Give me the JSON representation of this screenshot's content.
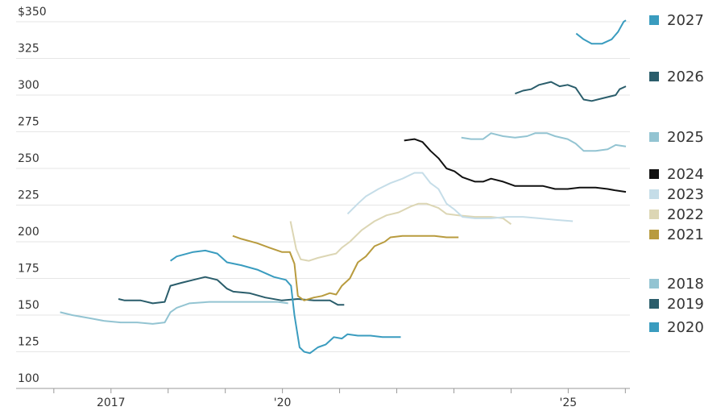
{
  "chart_data": {
    "type": "line",
    "xlim": [
      2015.34,
      2026.08
    ],
    "ylim": [
      100,
      350
    ],
    "yticks": [
      100,
      125,
      150,
      175,
      200,
      225,
      250,
      275,
      300,
      325,
      {
        "value": 350,
        "label": "$350"
      }
    ],
    "xticks": [
      {
        "value": 2017,
        "label": "2017"
      },
      {
        "value": 2020,
        "label": "'20"
      },
      {
        "value": 2025,
        "label": "'25"
      }
    ],
    "xminor_ticks": [
      2016,
      2018,
      2019,
      2021,
      2022,
      2023,
      2024,
      2026
    ],
    "grid": true,
    "series": [
      {
        "name": "2018",
        "color": "#93c4d2",
        "x": [
          2016.11,
          2016.32,
          2016.61,
          2016.89,
          2017.17,
          2017.46,
          2017.73,
          2017.94,
          2018.04,
          2018.15,
          2018.37,
          2018.72,
          2019.14,
          2019.56,
          2019.92,
          2020.1
        ],
        "values": [
          152,
          150,
          148,
          146,
          145,
          145,
          144,
          145,
          152,
          155,
          158,
          159,
          159,
          159,
          159,
          158
        ]
      },
      {
        "name": "2019",
        "color": "#2a5d6b",
        "x": [
          2017.13,
          2017.24,
          2017.52,
          2017.73,
          2017.94,
          2018.04,
          2018.23,
          2018.44,
          2018.65,
          2018.86,
          2019.03,
          2019.14,
          2019.42,
          2019.7,
          2019.99,
          2020.27,
          2020.55,
          2020.83,
          2020.97,
          2021.08
        ],
        "values": [
          161,
          160,
          160,
          158,
          159,
          170,
          172,
          174,
          176,
          174,
          168,
          166,
          165,
          162,
          160,
          161,
          160,
          160,
          157,
          157
        ]
      },
      {
        "name": "2020",
        "color": "#3a9cbf",
        "x": [
          2018.04,
          2018.15,
          2018.44,
          2018.65,
          2018.86,
          2019.03,
          2019.28,
          2019.56,
          2019.85,
          2020.06,
          2020.15,
          2020.21,
          2020.3,
          2020.38,
          2020.48,
          2020.62,
          2020.76,
          2020.9,
          2021.04,
          2021.14,
          2021.32,
          2021.54,
          2021.75,
          2021.96,
          2022.07
        ],
        "values": [
          187,
          190,
          193,
          194,
          192,
          186,
          184,
          181,
          176,
          174,
          170,
          150,
          128,
          125,
          124,
          128,
          130,
          135,
          134,
          137,
          136,
          136,
          135,
          135,
          135
        ]
      },
      {
        "name": "2021",
        "color": "#b89b3e",
        "x": [
          2019.13,
          2019.28,
          2019.56,
          2019.77,
          2019.99,
          2020.13,
          2020.21,
          2020.27,
          2020.38,
          2020.55,
          2020.69,
          2020.83,
          2020.94,
          2021.04,
          2021.18,
          2021.32,
          2021.46,
          2021.61,
          2021.79,
          2021.89,
          2022.1,
          2022.38,
          2022.66,
          2022.87,
          2023.08
        ],
        "values": [
          204,
          202,
          199,
          196,
          193,
          193,
          185,
          163,
          160,
          162,
          163,
          165,
          164,
          170,
          175,
          186,
          190,
          197,
          200,
          203,
          204,
          204,
          204,
          203,
          203
        ]
      },
      {
        "name": "2022",
        "color": "#dcd6b4",
        "x": [
          2020.14,
          2020.24,
          2020.32,
          2020.46,
          2020.62,
          2020.83,
          2020.94,
          2021.04,
          2021.18,
          2021.39,
          2021.61,
          2021.82,
          2022.03,
          2022.24,
          2022.38,
          2022.52,
          2022.73,
          2022.87,
          2023.08,
          2023.37,
          2023.65,
          2023.86,
          2024.0
        ],
        "values": [
          214,
          195,
          188,
          187,
          189,
          191,
          192,
          196,
          200,
          208,
          214,
          218,
          220,
          224,
          226,
          226,
          223,
          219,
          218,
          217,
          217,
          216,
          212
        ]
      },
      {
        "name": "2023",
        "color": "#c5dde8",
        "x": [
          2021.14,
          2021.32,
          2021.46,
          2021.68,
          2021.89,
          2022.1,
          2022.31,
          2022.45,
          2022.59,
          2022.73,
          2022.87,
          2023.01,
          2023.15,
          2023.37,
          2023.65,
          2023.93,
          2024.21,
          2024.49,
          2024.77,
          2025.08
        ],
        "values": [
          219,
          226,
          231,
          236,
          240,
          243,
          247,
          247,
          240,
          236,
          226,
          222,
          217,
          216,
          216,
          217,
          217,
          216,
          215,
          214
        ]
      },
      {
        "name": "2024",
        "color": "#111111",
        "x": [
          2022.13,
          2022.31,
          2022.45,
          2022.59,
          2022.73,
          2022.87,
          2023.01,
          2023.15,
          2023.37,
          2023.51,
          2023.65,
          2023.86,
          2024.07,
          2024.35,
          2024.56,
          2024.77,
          2024.99,
          2025.2,
          2025.48,
          2025.69,
          2025.83,
          2026.01
        ],
        "values": [
          269,
          270,
          268,
          262,
          257,
          250,
          248,
          244,
          241,
          241,
          243,
          241,
          238,
          238,
          238,
          236,
          236,
          237,
          237,
          236,
          235,
          234
        ]
      },
      {
        "name": "2025",
        "color": "#93c4d2",
        "x": [
          2023.13,
          2023.3,
          2023.51,
          2023.65,
          2023.86,
          2024.07,
          2024.28,
          2024.42,
          2024.63,
          2024.77,
          2024.99,
          2025.13,
          2025.27,
          2025.48,
          2025.69,
          2025.83,
          2026.01
        ],
        "values": [
          271,
          270,
          270,
          274,
          272,
          271,
          272,
          274,
          274,
          272,
          270,
          267,
          262,
          262,
          263,
          266,
          265
        ]
      },
      {
        "name": "2026",
        "color": "#2a5d6b",
        "x": [
          2024.07,
          2024.21,
          2024.35,
          2024.49,
          2024.7,
          2024.85,
          2024.99,
          2025.13,
          2025.27,
          2025.41,
          2025.62,
          2025.83,
          2025.9,
          2026.01
        ],
        "values": [
          301,
          303,
          304,
          307,
          309,
          306,
          307,
          305,
          297,
          296,
          298,
          300,
          304,
          306
        ]
      },
      {
        "name": "2027",
        "color": "#3a9cbf",
        "x": [
          2025.14,
          2025.27,
          2025.41,
          2025.59,
          2025.76,
          2025.87,
          2025.97,
          2026.01
        ],
        "values": [
          342,
          338,
          335,
          335,
          338,
          343,
          350,
          351
        ]
      }
    ]
  }
}
